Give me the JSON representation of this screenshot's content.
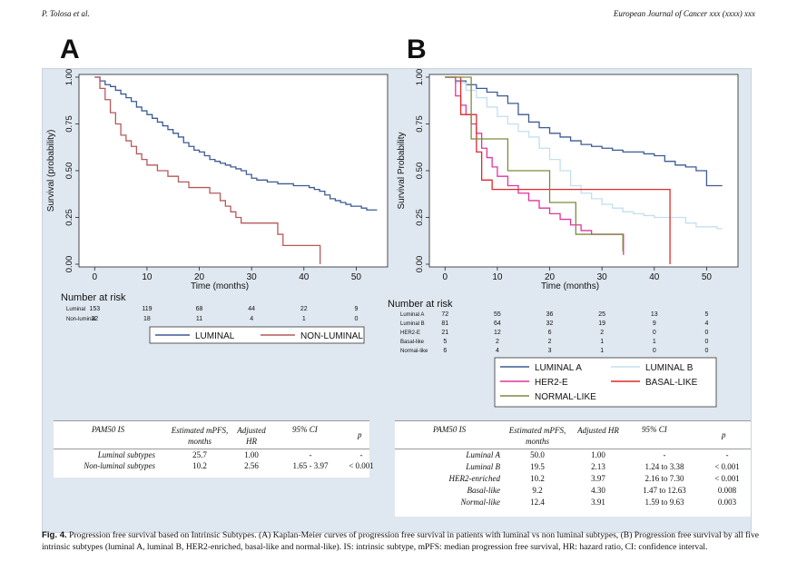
{
  "header": {
    "authors": "P. Tolosa et al.",
    "journal": "European Journal of Cancer xxx (xxxx) xxx"
  },
  "panel_labels": [
    "A",
    "B"
  ],
  "chart_data": [
    {
      "type": "line",
      "panel": "A",
      "ylabel": "Survival (probability)",
      "xlabel": "Time (months)",
      "xlim": [
        -3,
        56
      ],
      "ylim": [
        0,
        1
      ],
      "x_ticks": [
        0,
        10,
        20,
        30,
        40,
        50
      ],
      "y_ticks": [
        "0.00",
        "0.25",
        "0.50",
        "0.75",
        "1.00"
      ],
      "series": [
        {
          "name": "LUMINAL",
          "color": "#3d5b94",
          "x": [
            0,
            1,
            2,
            3,
            4,
            5,
            6,
            7,
            8,
            9,
            10,
            11,
            12,
            13,
            14,
            15,
            16,
            17,
            18,
            19,
            20,
            21,
            22,
            23,
            24,
            25,
            26,
            27,
            28,
            29,
            30,
            31,
            32,
            33,
            34,
            35,
            36,
            37,
            38,
            39,
            40,
            41,
            42,
            43,
            44,
            45,
            46,
            47,
            48,
            49,
            50,
            51,
            52,
            53,
            54
          ],
          "y": [
            1,
            0.98,
            0.96,
            0.95,
            0.93,
            0.91,
            0.89,
            0.87,
            0.84,
            0.82,
            0.8,
            0.78,
            0.76,
            0.74,
            0.72,
            0.7,
            0.68,
            0.65,
            0.63,
            0.61,
            0.6,
            0.58,
            0.56,
            0.55,
            0.54,
            0.53,
            0.52,
            0.51,
            0.5,
            0.48,
            0.46,
            0.45,
            0.45,
            0.44,
            0.44,
            0.43,
            0.43,
            0.43,
            0.42,
            0.42,
            0.42,
            0.41,
            0.4,
            0.39,
            0.37,
            0.35,
            0.34,
            0.33,
            0.32,
            0.31,
            0.31,
            0.3,
            0.29,
            0.29,
            0.29
          ]
        },
        {
          "name": "NON-LUMINAL",
          "color": "#b55a5a",
          "x": [
            0,
            1,
            2,
            3,
            4,
            5,
            6,
            7,
            8,
            9,
            10,
            12,
            14,
            16,
            18,
            20,
            21,
            22,
            24,
            25,
            26,
            27,
            28,
            30,
            32,
            34,
            35,
            36,
            38,
            40,
            42,
            43,
            43.1
          ],
          "y": [
            1,
            0.94,
            0.88,
            0.81,
            0.75,
            0.69,
            0.66,
            0.63,
            0.59,
            0.56,
            0.53,
            0.5,
            0.47,
            0.44,
            0.41,
            0.41,
            0.41,
            0.38,
            0.34,
            0.31,
            0.28,
            0.25,
            0.22,
            0.22,
            0.22,
            0.22,
            0.16,
            0.1,
            0.1,
            0.1,
            0.1,
            0.1,
            0
          ]
        }
      ],
      "risk_table": {
        "heading": "Number at risk",
        "x": [
          0,
          10,
          20,
          30,
          40,
          50
        ],
        "rows": [
          {
            "label": "Luminal",
            "values": [
              153,
              119,
              68,
              44,
              22,
              9
            ]
          },
          {
            "label": "Non-luminal",
            "values": [
              32,
              18,
              11,
              4,
              1,
              0
            ]
          }
        ]
      }
    },
    {
      "type": "line",
      "panel": "B",
      "ylabel": "Survival Probability",
      "xlabel": "Time (months)",
      "xlim": [
        -3,
        56
      ],
      "ylim": [
        0,
        1
      ],
      "x_ticks": [
        0,
        10,
        20,
        30,
        40,
        50
      ],
      "y_ticks": [
        "0.00",
        "0.25",
        "0.50",
        "0.75",
        "1.00"
      ],
      "series": [
        {
          "name": "LUMINAL A",
          "color": "#3d5b94",
          "x": [
            0,
            2,
            4,
            6,
            8,
            10,
            12,
            14,
            16,
            18,
            20,
            22,
            24,
            26,
            28,
            30,
            32,
            34,
            36,
            38,
            40,
            42,
            44,
            46,
            48,
            50,
            52,
            53
          ],
          "y": [
            1,
            0.98,
            0.96,
            0.94,
            0.92,
            0.9,
            0.86,
            0.8,
            0.76,
            0.73,
            0.7,
            0.68,
            0.66,
            0.64,
            0.63,
            0.62,
            0.61,
            0.6,
            0.6,
            0.59,
            0.58,
            0.55,
            0.53,
            0.52,
            0.5,
            0.42,
            0.42,
            0.42
          ]
        },
        {
          "name": "LUMINAL B",
          "color": "#c3dff0",
          "x": [
            0,
            2,
            4,
            6,
            8,
            10,
            12,
            14,
            16,
            18,
            20,
            22,
            24,
            26,
            28,
            30,
            32,
            34,
            36,
            38,
            40,
            42,
            44,
            46,
            48,
            50,
            52,
            53
          ],
          "y": [
            1,
            0.97,
            0.93,
            0.89,
            0.84,
            0.79,
            0.75,
            0.71,
            0.68,
            0.62,
            0.56,
            0.5,
            0.42,
            0.38,
            0.35,
            0.32,
            0.3,
            0.28,
            0.27,
            0.26,
            0.25,
            0.25,
            0.25,
            0.22,
            0.2,
            0.2,
            0.19,
            0.19
          ]
        },
        {
          "name": "HER2-E",
          "color": "#e0359c",
          "x": [
            0,
            2,
            3,
            4,
            5,
            6,
            7,
            8,
            9,
            10,
            12,
            14,
            16,
            18,
            20,
            22,
            24,
            26,
            28,
            30,
            32,
            34,
            34.1
          ],
          "y": [
            1,
            0.9,
            0.85,
            0.8,
            0.75,
            0.7,
            0.62,
            0.57,
            0.52,
            0.47,
            0.42,
            0.38,
            0.34,
            0.3,
            0.27,
            0.24,
            0.21,
            0.18,
            0.16,
            0.16,
            0.16,
            0.16,
            0.05
          ]
        },
        {
          "name": "BASAL-LIKE",
          "color": "#e02a2a",
          "x": [
            0,
            3,
            3,
            6,
            6,
            7,
            7,
            9,
            9,
            42,
            43,
            43
          ],
          "y": [
            1,
            1,
            0.8,
            0.8,
            0.6,
            0.6,
            0.45,
            0.45,
            0.4,
            0.4,
            0.4,
            0
          ]
        },
        {
          "name": "NORMAL-LIKE",
          "color": "#7d8c3f",
          "x": [
            0,
            5,
            5,
            12,
            12,
            20,
            20,
            25,
            25,
            33,
            34
          ],
          "y": [
            1,
            1,
            0.67,
            0.67,
            0.5,
            0.5,
            0.33,
            0.33,
            0.16,
            0.16,
            0.07
          ]
        }
      ],
      "risk_table": {
        "heading": "Number at risk",
        "x": [
          0,
          10,
          20,
          30,
          40,
          50
        ],
        "rows": [
          {
            "label": "Luminal A",
            "values": [
              72,
              55,
              36,
              25,
              13,
              5
            ]
          },
          {
            "label": "Luminal B",
            "values": [
              81,
              64,
              32,
              19,
              9,
              4
            ]
          },
          {
            "label": "HER2-E",
            "values": [
              21,
              12,
              6,
              2,
              0,
              0
            ]
          },
          {
            "label": "Basal-like",
            "values": [
              5,
              2,
              2,
              1,
              1,
              0
            ]
          },
          {
            "label": "Normal-like",
            "values": [
              6,
              4,
              3,
              1,
              0,
              0
            ]
          }
        ]
      }
    }
  ],
  "table_a": {
    "headers": [
      "PAM50 IS",
      "Estimated mPFS, months",
      "Adjusted HR",
      "95% CI",
      "p"
    ],
    "rows": [
      [
        "Luminal subtypes",
        "25.7",
        "1.00",
        "-",
        "-"
      ],
      [
        "Non-luminal subtypes",
        "10.2",
        "2.56",
        "1.65 - 3.97",
        "< 0.001"
      ]
    ]
  },
  "table_b": {
    "headers": [
      "PAM50 IS",
      "Estimated mPFS, months",
      "Adjusted HR",
      "95% CI",
      "p"
    ],
    "rows": [
      [
        "Luminal A",
        "50.0",
        "1.00",
        "-",
        "-"
      ],
      [
        "Luminal B",
        "19.5",
        "2.13",
        "1.24 to 3.38",
        "< 0.001"
      ],
      [
        "HER2-enriched",
        "10.2",
        "3.97",
        "2.16 to 7.30",
        "< 0.001"
      ],
      [
        "Basal-like",
        "9.2",
        "4.30",
        "1.47 to 12.63",
        "0.008"
      ],
      [
        "Normal-like",
        "12.4",
        "3.91",
        "1.59 to 9.63",
        "0.003"
      ]
    ]
  },
  "caption": {
    "label": "Fig. 4.",
    "text": "Progression free survival based on Intrinsic Subtypes. (A) Kaplan-Meier curves of progression free survival in patients with luminal vs non luminal subtypes, (B) Progression free survival by all five intrinsic subtypes (luminal A, luminal B, HER2-enriched, basal-like and normal-like). IS: intrinsic subtype, mPFS: median progression free survival, HR: hazard ratio, CI: confidence interval."
  }
}
